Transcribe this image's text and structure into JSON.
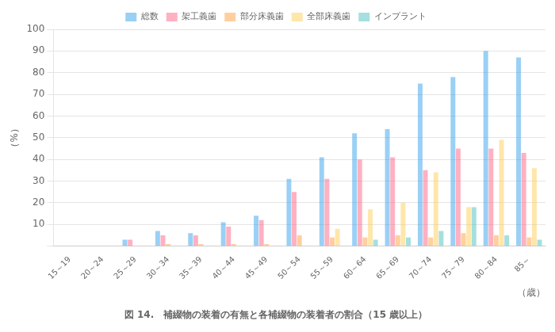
{
  "chart_data": {
    "type": "bar",
    "title": "図 14.　補綴物の装着の有無と各補綴物の装着者の割合（15 歳以上）",
    "x_label": "（歳）",
    "y_label": "（%）",
    "categories": [
      "15～19",
      "20～24",
      "25～29",
      "30～34",
      "35～39",
      "40～44",
      "45～49",
      "50～54",
      "55～59",
      "60～64",
      "65～69",
      "70～74",
      "75～79",
      "80～84",
      "85～"
    ],
    "series": [
      {
        "name": "総数",
        "values": [
          0,
          0,
          3,
          7,
          6,
          11,
          14,
          31,
          41,
          52,
          54,
          75,
          78,
          90,
          87
        ]
      },
      {
        "name": "架工義歯",
        "values": [
          0,
          0,
          3,
          5,
          5,
          9,
          12,
          25,
          31,
          40,
          41,
          35,
          45,
          45,
          43
        ]
      },
      {
        "name": "部分床義歯",
        "values": [
          0,
          0,
          0,
          1,
          1,
          1,
          1,
          5,
          4,
          4,
          5,
          4,
          6,
          5,
          4
        ]
      },
      {
        "name": "全部床義歯",
        "values": [
          0,
          0,
          0,
          0,
          0,
          0,
          0,
          0,
          8,
          17,
          20,
          34,
          18,
          49,
          36
        ]
      },
      {
        "name": "インプラント",
        "values": [
          0,
          0,
          0,
          0,
          0,
          0,
          0,
          0,
          0,
          3,
          4,
          7,
          18,
          5,
          3
        ]
      }
    ],
    "ylim": [
      0,
      100
    ],
    "yticks": [
      {
        "value": 0,
        "label": null
      },
      10,
      20,
      30,
      40,
      50,
      60,
      70,
      80,
      90,
      100
    ],
    "grid": true,
    "legend": "top"
  }
}
